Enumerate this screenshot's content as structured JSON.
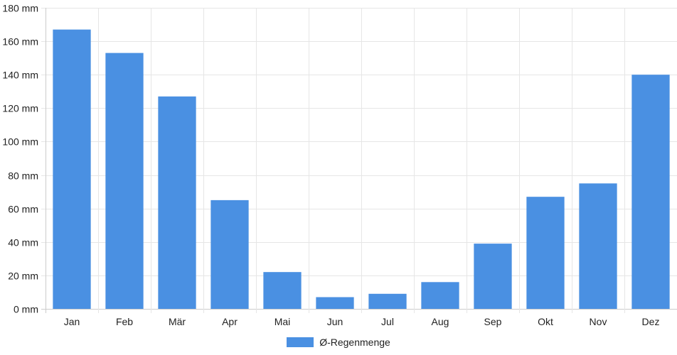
{
  "chart_data": {
    "type": "bar",
    "categories": [
      "Jan",
      "Feb",
      "Mär",
      "Apr",
      "Mai",
      "Jun",
      "Jul",
      "Aug",
      "Sep",
      "Okt",
      "Nov",
      "Dez"
    ],
    "series": [
      {
        "name": "Ø-Regenmenge",
        "values": [
          167,
          153,
          127,
          65,
          22,
          7,
          9,
          16,
          39,
          67,
          75,
          140
        ]
      }
    ],
    "y_ticks": [
      "0 mm",
      "20 mm",
      "40 mm",
      "60 mm",
      "80 mm",
      "100 mm",
      "120 mm",
      "140 mm",
      "160 mm",
      "180 mm"
    ],
    "ylim": [
      0,
      180
    ],
    "grid": true,
    "legend_position": "bottom-center",
    "bar_color": "#4a90e2"
  }
}
